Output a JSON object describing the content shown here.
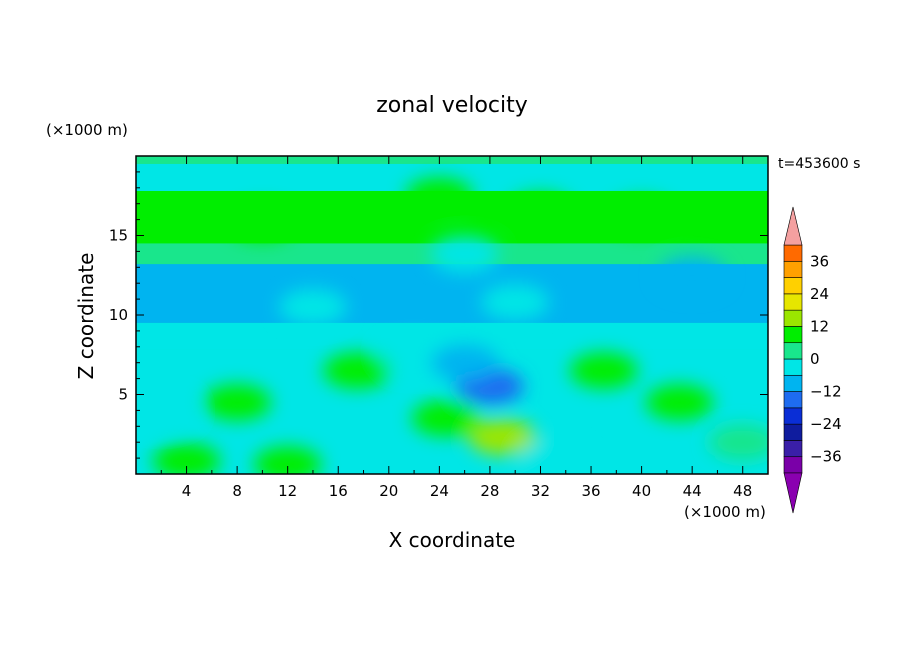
{
  "chart_data": {
    "type": "heatmap",
    "title": "zonal velocity",
    "xlabel": "X coordinate",
    "ylabel": "Z coordinate",
    "x_unit": "(×1000 m)",
    "y_unit": "(×1000 m)",
    "time_label": "t=453600 s",
    "xlim": [
      0,
      50
    ],
    "ylim": [
      0,
      20
    ],
    "x_ticks": [
      4,
      8,
      12,
      16,
      20,
      24,
      28,
      32,
      36,
      40,
      44,
      48
    ],
    "y_ticks": [
      5,
      10,
      15
    ],
    "colorbar": {
      "labels": [
        "36",
        "24",
        "12",
        "0",
        "−12",
        "−24",
        "−36"
      ],
      "label_values": [
        36,
        24,
        12,
        0,
        -12,
        -24,
        -36
      ],
      "levels": [
        -42,
        -36,
        -30,
        -24,
        -18,
        -12,
        -6,
        0,
        6,
        12,
        18,
        24,
        30,
        36,
        42
      ],
      "colors": [
        "#7a00a8",
        "#3a1fa8",
        "#0f1c9e",
        "#0a2ed6",
        "#1e6cf0",
        "#00b4f0",
        "#00e6e6",
        "#19e68c",
        "#00ee00",
        "#9be600",
        "#e6e600",
        "#ffd000",
        "#ffa000",
        "#ff6a00",
        "#f01e1e"
      ],
      "over_color": "#f4a0a0",
      "under_color": "#8a00b0"
    },
    "features": [
      {
        "x": 32,
        "z": 16.5,
        "value": 10
      },
      {
        "x": 24,
        "z": 17.5,
        "value": 9
      },
      {
        "x": 40,
        "z": 16.2,
        "value": 8
      },
      {
        "x": 10,
        "z": 15.8,
        "value": 8
      },
      {
        "x": 26,
        "z": 13.8,
        "value": -2
      },
      {
        "x": 44,
        "z": 12.5,
        "value": -8
      },
      {
        "x": 30,
        "z": 10.8,
        "value": -5
      },
      {
        "x": 14,
        "z": 10.5,
        "value": -4
      },
      {
        "x": 22,
        "z": 7.5,
        "value": -6
      },
      {
        "x": 8,
        "z": 4.5,
        "value": 10
      },
      {
        "x": 17.5,
        "z": 6.5,
        "value": 10
      },
      {
        "x": 29,
        "z": 2.3,
        "value": 12
      },
      {
        "x": 24.5,
        "z": 3.5,
        "value": 8
      },
      {
        "x": 43,
        "z": 4.5,
        "value": 10
      },
      {
        "x": 37,
        "z": 6.5,
        "value": 8
      },
      {
        "x": 28,
        "z": 5.5,
        "value": -14
      },
      {
        "x": 26,
        "z": 7.0,
        "value": -7
      },
      {
        "x": 2,
        "z": 4.0,
        "value": -6
      },
      {
        "x": 12,
        "z": 0.6,
        "value": 10
      },
      {
        "x": 4,
        "z": 0.8,
        "value": 7
      },
      {
        "x": 33,
        "z": 1.0,
        "value": -4
      },
      {
        "x": 48,
        "z": 2.0,
        "value": 2
      }
    ]
  }
}
